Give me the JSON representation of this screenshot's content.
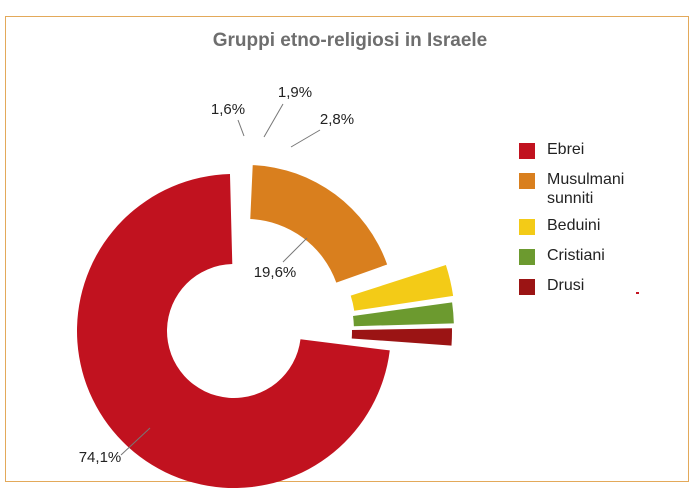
{
  "chart_data": {
    "type": "pie",
    "variant": "donut",
    "title": "Gruppi etno-religiosi in Israele",
    "legend_position": "right",
    "slices": [
      {
        "label": "Ebrei",
        "value": 74.1,
        "value_label": "74,1%",
        "color": "#c1121f"
      },
      {
        "label": "Musulmani sunniti",
        "value": 19.6,
        "value_label": "19,6%",
        "color": "#d97f1e"
      },
      {
        "label": "Beduini",
        "value": 2.8,
        "value_label": "2,8%",
        "color": "#f3cb17"
      },
      {
        "label": "Cristiani",
        "value": 1.9,
        "value_label": "1,9%",
        "color": "#6c9a2f"
      },
      {
        "label": "Drusi",
        "value": 1.6,
        "value_label": "1,6%",
        "color": "#9b1414"
      }
    ]
  }
}
